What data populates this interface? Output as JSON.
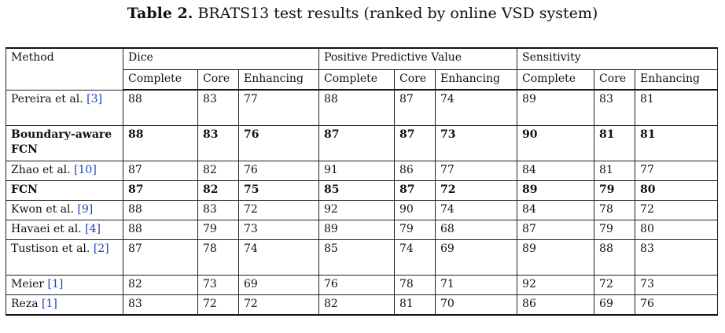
{
  "caption": {
    "label": "Table 2.",
    "text": " BRATS13 test results (ranked by online VSD system)"
  },
  "headers": {
    "method": "Method",
    "groups": [
      "Dice",
      "Positive Predictive Value",
      "Sensitivity"
    ],
    "subs": [
      "Complete",
      "Core",
      "Enhancing",
      "Complete",
      "Core",
      "Enhancing",
      "Complete",
      "Core",
      "Enhancing"
    ]
  },
  "rows": [
    {
      "method": "Pereira et al. ",
      "ref": "[3]",
      "values": [
        "88",
        "83",
        "77",
        "88",
        "87",
        "74",
        "89",
        "83",
        "81"
      ]
    },
    {
      "method": "Boundary-aware FCN",
      "ref": "",
      "values": [
        "88",
        "83",
        "76",
        "87",
        "87",
        "73",
        "90",
        "81",
        "81"
      ]
    },
    {
      "method": "Zhao et al. ",
      "ref": "[10]",
      "values": [
        "87",
        "82",
        "76",
        "91",
        "86",
        "77",
        "84",
        "81",
        "77"
      ]
    },
    {
      "method": "FCN",
      "ref": "",
      "values": [
        "87",
        "82",
        "75",
        "85",
        "87",
        "72",
        "89",
        "79",
        "80"
      ]
    },
    {
      "method": "Kwon et al. ",
      "ref": "[9]",
      "values": [
        "88",
        "83",
        "72",
        "92",
        "90",
        "74",
        "84",
        "78",
        "72"
      ]
    },
    {
      "method": "Havaei et al. ",
      "ref": "[4]",
      "values": [
        "88",
        "79",
        "73",
        "89",
        "79",
        "68",
        "87",
        "79",
        "80"
      ]
    },
    {
      "method": "Tustison et al. ",
      "ref": "[2]",
      "values": [
        "87",
        "78",
        "74",
        "85",
        "74",
        "69",
        "89",
        "88",
        "83"
      ]
    },
    {
      "method": "Meier ",
      "ref": "[1]",
      "values": [
        "82",
        "73",
        "69",
        "76",
        "78",
        "71",
        "92",
        "72",
        "73"
      ]
    },
    {
      "method": "Reza ",
      "ref": "[1]",
      "values": [
        "83",
        "72",
        "72",
        "82",
        "81",
        "70",
        "86",
        "69",
        "76"
      ]
    }
  ]
}
